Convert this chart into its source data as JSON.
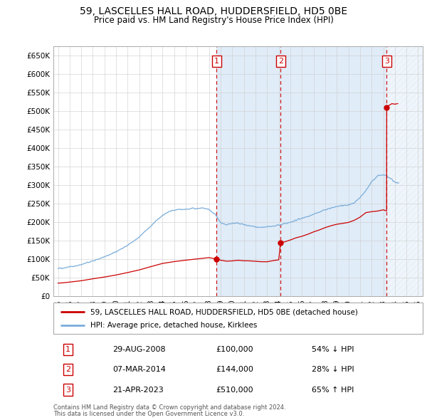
{
  "title": "59, LASCELLES HALL ROAD, HUDDERSFIELD, HD5 0BE",
  "subtitle": "Price paid vs. HM Land Registry's House Price Index (HPI)",
  "legend_line1": "59, LASCELLES HALL ROAD, HUDDERSFIELD, HD5 0BE (detached house)",
  "legend_line2": "HPI: Average price, detached house, Kirklees",
  "footnote1": "Contains HM Land Registry data © Crown copyright and database right 2024.",
  "footnote2": "This data is licensed under the Open Government Licence v3.0.",
  "ylim": [
    0,
    675000
  ],
  "yticks": [
    0,
    50000,
    100000,
    150000,
    200000,
    250000,
    300000,
    350000,
    400000,
    450000,
    500000,
    550000,
    600000,
    650000
  ],
  "ytick_labels": [
    "£0",
    "£50K",
    "£100K",
    "£150K",
    "£200K",
    "£250K",
    "£300K",
    "£350K",
    "£400K",
    "£450K",
    "£500K",
    "£550K",
    "£600K",
    "£650K"
  ],
  "xlim_start": 1994.6,
  "xlim_end": 2026.4,
  "xtick_years": [
    1995,
    1996,
    1997,
    1998,
    1999,
    2000,
    2001,
    2002,
    2003,
    2004,
    2005,
    2006,
    2007,
    2008,
    2009,
    2010,
    2011,
    2012,
    2013,
    2014,
    2015,
    2016,
    2017,
    2018,
    2019,
    2020,
    2021,
    2022,
    2023,
    2024,
    2025,
    2026
  ],
  "hpi_color": "#7aadda",
  "price_color": "#cc0000",
  "sale_marker_color": "#cc0000",
  "transaction_box_color": "#cc0000",
  "shading_color": "#e0ecf8",
  "sales": [
    {
      "date": 2008.66,
      "price": 100000,
      "label": "1",
      "date_str": "29-AUG-2008",
      "price_str": "£100,000",
      "note": "54% ↓ HPI"
    },
    {
      "date": 2014.17,
      "price": 144000,
      "label": "2",
      "date_str": "07-MAR-2014",
      "price_str": "£144,000",
      "note": "28% ↓ HPI"
    },
    {
      "date": 2023.3,
      "price": 510000,
      "label": "3",
      "date_str": "21-APR-2023",
      "price_str": "£510,000",
      "note": "65% ↑ HPI"
    }
  ],
  "row_data": [
    {
      "num": "1",
      "date": "29-AUG-2008",
      "price": "£100,000",
      "note": "54% ↓ HPI"
    },
    {
      "num": "2",
      "date": "07-MAR-2014",
      "price": "£144,000",
      "note": "28% ↓ HPI"
    },
    {
      "num": "3",
      "date": "21-APR-2023",
      "price": "£510,000",
      "note": "65% ↑ HPI"
    }
  ]
}
